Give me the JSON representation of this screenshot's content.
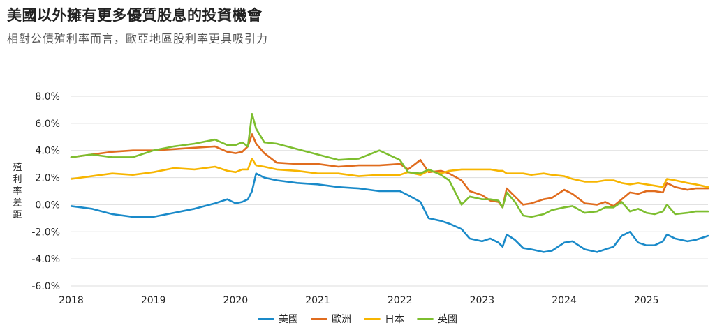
{
  "title": "美國以外擁有更多優質股息的投資機會",
  "subtitle": "相對公債殖利率而言，歐亞地區股利率更具吸引力",
  "chart_data": {
    "type": "line",
    "title": "美國以外擁有更多優質股息的投資機會",
    "subtitle": "相對公債殖利率而言，歐亞地區股利率更具吸引力",
    "ylabel": "殖利率差距",
    "xlabel": "",
    "y_unit": "%",
    "ylim": [
      -6,
      8
    ],
    "yticks": [
      "8.0%",
      "6.0%",
      "4.0%",
      "2.0%",
      "0.0%",
      "-2.0%",
      "-4.0%",
      "-6.0%"
    ],
    "ytick_values": [
      8,
      6,
      4,
      2,
      0,
      -2,
      -4,
      -6
    ],
    "xlim": [
      2018.0,
      2025.75
    ],
    "xticks": [
      "2018",
      "2019",
      "2020",
      "2021",
      "2022",
      "2023",
      "2024",
      "2025"
    ],
    "grid": "horizontal",
    "legend_position": "bottom",
    "series": [
      {
        "name": "美國",
        "color": "#1a8ac9",
        "x": [
          2018.0,
          2018.25,
          2018.5,
          2018.75,
          2019.0,
          2019.25,
          2019.5,
          2019.75,
          2019.9,
          2020.0,
          2020.08,
          2020.15,
          2020.2,
          2020.25,
          2020.35,
          2020.5,
          2020.75,
          2021.0,
          2021.25,
          2021.5,
          2021.75,
          2022.0,
          2022.1,
          2022.25,
          2022.35,
          2022.5,
          2022.6,
          2022.75,
          2022.85,
          2023.0,
          2023.1,
          2023.2,
          2023.25,
          2023.3,
          2023.4,
          2023.5,
          2023.6,
          2023.75,
          2023.85,
          2024.0,
          2024.1,
          2024.25,
          2024.4,
          2024.5,
          2024.6,
          2024.7,
          2024.8,
          2024.9,
          2025.0,
          2025.1,
          2025.2,
          2025.25,
          2025.35,
          2025.5,
          2025.6,
          2025.75
        ],
        "y": [
          -0.1,
          -0.3,
          -0.7,
          -0.9,
          -0.9,
          -0.6,
          -0.3,
          0.1,
          0.4,
          0.1,
          0.2,
          0.4,
          1.0,
          2.3,
          2.0,
          1.8,
          1.6,
          1.5,
          1.3,
          1.2,
          1.0,
          1.0,
          0.7,
          0.2,
          -1.0,
          -1.2,
          -1.4,
          -1.8,
          -2.5,
          -2.7,
          -2.5,
          -2.8,
          -3.1,
          -2.2,
          -2.6,
          -3.2,
          -3.3,
          -3.5,
          -3.4,
          -2.8,
          -2.7,
          -3.3,
          -3.5,
          -3.3,
          -3.1,
          -2.3,
          -2.0,
          -2.8,
          -3.0,
          -3.0,
          -2.7,
          -2.2,
          -2.5,
          -2.7,
          -2.6,
          -2.3
        ]
      },
      {
        "name": "歐洲",
        "color": "#e06c1e",
        "x": [
          2018.0,
          2018.25,
          2018.5,
          2018.75,
          2019.0,
          2019.25,
          2019.5,
          2019.75,
          2019.9,
          2020.0,
          2020.08,
          2020.15,
          2020.2,
          2020.25,
          2020.35,
          2020.5,
          2020.75,
          2021.0,
          2021.25,
          2021.5,
          2021.75,
          2022.0,
          2022.1,
          2022.25,
          2022.35,
          2022.5,
          2022.6,
          2022.75,
          2022.85,
          2023.0,
          2023.1,
          2023.2,
          2023.25,
          2023.3,
          2023.4,
          2023.5,
          2023.6,
          2023.75,
          2023.85,
          2024.0,
          2024.1,
          2024.25,
          2024.4,
          2024.5,
          2024.6,
          2024.7,
          2024.8,
          2024.9,
          2025.0,
          2025.1,
          2025.2,
          2025.25,
          2025.35,
          2025.5,
          2025.6,
          2025.75
        ],
        "y": [
          3.5,
          3.7,
          3.9,
          4.0,
          4.0,
          4.1,
          4.2,
          4.3,
          3.9,
          3.8,
          3.9,
          4.3,
          5.2,
          4.5,
          3.8,
          3.1,
          3.0,
          3.0,
          2.8,
          2.9,
          2.9,
          3.0,
          2.6,
          3.3,
          2.4,
          2.5,
          2.3,
          1.8,
          1.0,
          0.7,
          0.3,
          0.2,
          -0.2,
          1.2,
          0.6,
          0.0,
          0.1,
          0.4,
          0.5,
          1.1,
          0.8,
          0.1,
          0.0,
          0.2,
          -0.1,
          0.4,
          0.9,
          0.8,
          1.0,
          1.0,
          0.9,
          1.6,
          1.3,
          1.1,
          1.2,
          1.2
        ]
      },
      {
        "name": "日本",
        "color": "#f7b500",
        "x": [
          2018.0,
          2018.25,
          2018.5,
          2018.75,
          2019.0,
          2019.25,
          2019.5,
          2019.75,
          2019.9,
          2020.0,
          2020.08,
          2020.15,
          2020.2,
          2020.25,
          2020.35,
          2020.5,
          2020.75,
          2021.0,
          2021.25,
          2021.5,
          2021.75,
          2022.0,
          2022.1,
          2022.25,
          2022.35,
          2022.5,
          2022.6,
          2022.75,
          2022.85,
          2023.0,
          2023.1,
          2023.2,
          2023.25,
          2023.3,
          2023.4,
          2023.5,
          2023.6,
          2023.75,
          2023.85,
          2024.0,
          2024.1,
          2024.25,
          2024.4,
          2024.5,
          2024.6,
          2024.7,
          2024.8,
          2024.9,
          2025.0,
          2025.1,
          2025.2,
          2025.25,
          2025.35,
          2025.5,
          2025.6,
          2025.75
        ],
        "y": [
          1.9,
          2.1,
          2.3,
          2.2,
          2.4,
          2.7,
          2.6,
          2.8,
          2.5,
          2.4,
          2.6,
          2.6,
          3.4,
          2.9,
          2.8,
          2.6,
          2.5,
          2.3,
          2.3,
          2.1,
          2.2,
          2.2,
          2.4,
          2.2,
          2.5,
          2.3,
          2.5,
          2.6,
          2.6,
          2.6,
          2.6,
          2.5,
          2.5,
          2.3,
          2.3,
          2.3,
          2.2,
          2.3,
          2.2,
          2.1,
          1.9,
          1.7,
          1.7,
          1.8,
          1.8,
          1.6,
          1.5,
          1.6,
          1.5,
          1.4,
          1.3,
          1.9,
          1.8,
          1.6,
          1.5,
          1.3
        ]
      },
      {
        "name": "英國",
        "color": "#7dbe2f",
        "x": [
          2018.0,
          2018.25,
          2018.5,
          2018.75,
          2019.0,
          2019.25,
          2019.5,
          2019.75,
          2019.9,
          2020.0,
          2020.08,
          2020.15,
          2020.2,
          2020.25,
          2020.35,
          2020.5,
          2020.75,
          2021.0,
          2021.25,
          2021.5,
          2021.75,
          2022.0,
          2022.1,
          2022.25,
          2022.35,
          2022.5,
          2022.6,
          2022.75,
          2022.85,
          2023.0,
          2023.1,
          2023.2,
          2023.25,
          2023.3,
          2023.4,
          2023.5,
          2023.6,
          2023.75,
          2023.85,
          2024.0,
          2024.1,
          2024.25,
          2024.4,
          2024.5,
          2024.6,
          2024.7,
          2024.8,
          2024.9,
          2025.0,
          2025.1,
          2025.2,
          2025.25,
          2025.35,
          2025.5,
          2025.6,
          2025.75
        ],
        "y": [
          3.5,
          3.7,
          3.5,
          3.5,
          4.0,
          4.3,
          4.5,
          4.8,
          4.4,
          4.4,
          4.6,
          4.3,
          6.7,
          5.6,
          4.6,
          4.5,
          4.1,
          3.7,
          3.3,
          3.4,
          4.0,
          3.3,
          2.4,
          2.3,
          2.6,
          2.2,
          1.8,
          0.0,
          0.6,
          0.4,
          0.4,
          0.3,
          -0.2,
          0.9,
          0.2,
          -0.8,
          -0.9,
          -0.7,
          -0.4,
          -0.2,
          -0.1,
          -0.6,
          -0.5,
          -0.2,
          -0.2,
          0.2,
          -0.5,
          -0.3,
          -0.6,
          -0.7,
          -0.5,
          0.0,
          -0.7,
          -0.6,
          -0.5,
          -0.5
        ]
      }
    ]
  }
}
